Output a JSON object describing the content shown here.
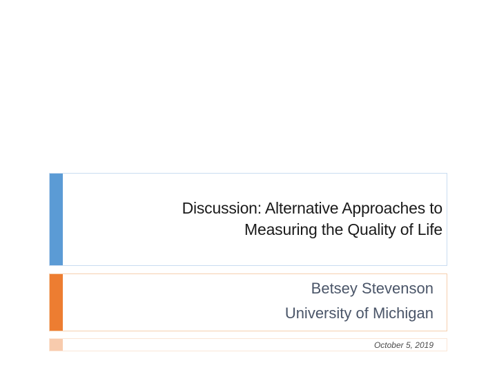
{
  "title": {
    "line1": "Discussion: Alternative Approaches to",
    "line2": "Measuring the Quality of Life"
  },
  "subtitle": {
    "author": "Betsey Stevenson",
    "affiliation": "University of Michigan"
  },
  "footer": {
    "date": "October 5, 2019"
  },
  "colors": {
    "title_accent": "#5b9bd5",
    "subtitle_accent": "#ed7d31",
    "date_accent": "#f8cbad"
  }
}
